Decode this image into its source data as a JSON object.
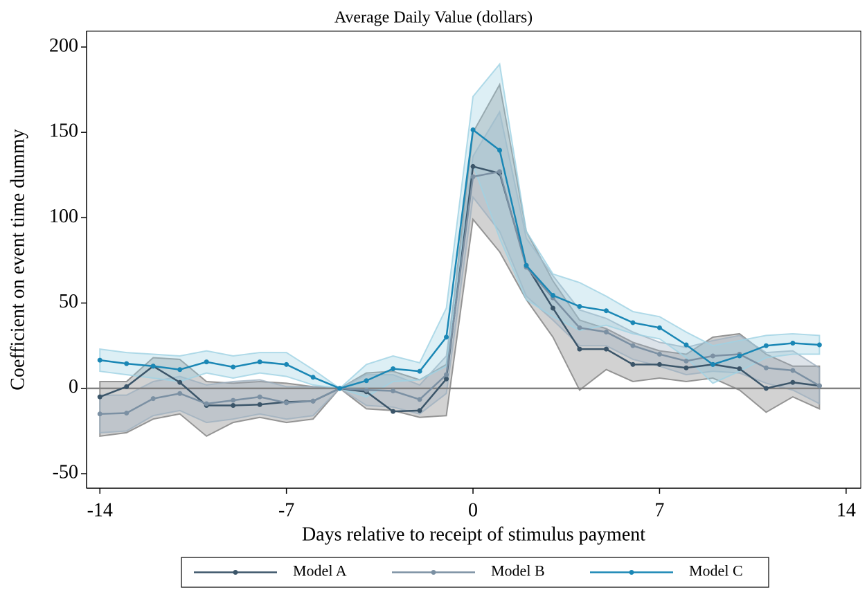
{
  "chart_data": {
    "type": "line",
    "title": "Average Daily Value (dollars)",
    "x_label": "Days relative to receipt of stimulus payment",
    "y_label": "Coefficient on event time dummy",
    "x": [
      -14,
      -13,
      -12,
      -11,
      -10,
      -9,
      -8,
      -7,
      -6,
      -5,
      -4,
      -3,
      -2,
      -1,
      0,
      1,
      2,
      3,
      4,
      5,
      6,
      7,
      8,
      9,
      10,
      11,
      12,
      13
    ],
    "series": [
      {
        "name": "Model A",
        "color": "#3b5569",
        "band_color": "#7f7f7f",
        "values": [
          -5,
          1,
          13,
          3.5,
          -10,
          -10,
          -9.5,
          -8,
          -7.5,
          0,
          -2,
          -13.5,
          -13,
          5.5,
          130,
          126,
          72,
          47,
          23,
          23,
          14,
          14,
          12,
          14,
          11.5,
          0,
          3.5,
          1.5
        ],
        "lower": [
          -28,
          -26,
          -18,
          -15,
          -28,
          -20,
          -17,
          -20,
          -18,
          0,
          -12,
          -13,
          -17,
          -16,
          99,
          80,
          52,
          30,
          -1,
          11,
          4,
          6,
          4,
          6,
          -1,
          -14,
          -5,
          -12
        ],
        "upper": [
          4,
          4,
          18,
          17,
          4,
          3,
          4,
          3,
          1,
          0,
          9,
          10,
          5,
          14,
          150,
          178,
          92,
          63,
          40,
          35,
          27,
          22,
          20,
          30,
          32,
          20,
          13,
          13
        ]
      },
      {
        "name": "Model B",
        "color": "#7b90a3",
        "band_color": "#9fb0bf",
        "values": [
          -15,
          -14.5,
          -6,
          -3,
          -9,
          -7,
          -5,
          -8.5,
          -7.5,
          0,
          -1,
          -1.5,
          -6.5,
          8,
          124,
          127,
          71,
          53,
          35.5,
          33,
          25,
          20,
          16,
          19,
          20,
          12,
          10.5,
          1.5
        ],
        "lower": [
          -26,
          -25,
          -16,
          -13,
          -20,
          -18,
          -15,
          -18,
          -16,
          0,
          -10,
          -11,
          -15,
          -3,
          112,
          92,
          54,
          40,
          25,
          25,
          17,
          13,
          8,
          10,
          9,
          3,
          -1,
          -9
        ],
        "upper": [
          -4,
          -4,
          4,
          7,
          2,
          4,
          5,
          1,
          1,
          0,
          8,
          8,
          2,
          19,
          136,
          162,
          88,
          66,
          46,
          41,
          33,
          27,
          24,
          28,
          31,
          21,
          22,
          12
        ]
      },
      {
        "name": "Model C",
        "color": "#1a87b5",
        "band_color": "#9fd2e3",
        "values": [
          16.5,
          14.5,
          13,
          11,
          15.5,
          12.5,
          15.5,
          14,
          6.5,
          0,
          4.5,
          11.5,
          10,
          30,
          151.5,
          139.5,
          72,
          54.5,
          48,
          45.5,
          38.5,
          35.5,
          25.5,
          14,
          19,
          25,
          26.5,
          25.5
        ],
        "lower": [
          10,
          8,
          6,
          4,
          9,
          6,
          9,
          7,
          2,
          0,
          -5,
          4,
          5,
          13,
          131,
          88,
          52,
          42,
          34,
          37,
          32,
          29,
          18,
          3,
          10,
          18,
          20,
          20
        ],
        "upper": [
          23,
          21,
          20,
          19,
          22,
          19,
          21,
          21,
          11,
          0,
          14,
          19,
          15,
          47,
          171,
          190,
          92,
          67,
          62,
          54,
          45,
          42,
          33,
          25,
          28,
          31,
          32,
          31
        ]
      }
    ],
    "xlim": [
      -14.5,
      14.55
    ],
    "ylim": [
      -58.5,
      209.3
    ],
    "xticks": [
      -14,
      -7,
      0,
      7,
      14
    ],
    "yticks": [
      -50,
      0,
      50,
      100,
      150,
      200
    ],
    "hline": 0,
    "hline_color": "#808080",
    "legend": "bottom"
  }
}
